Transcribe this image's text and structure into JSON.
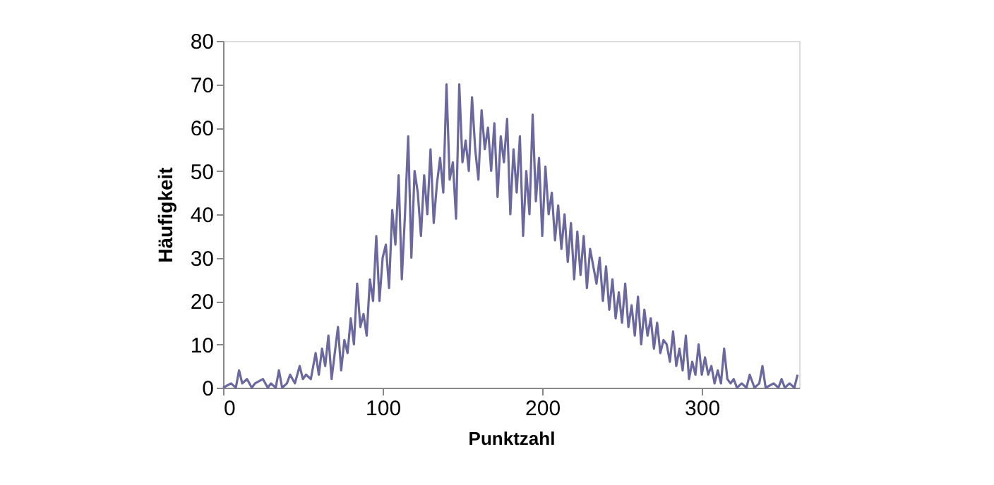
{
  "chart_data": {
    "type": "line",
    "xlabel": "Punktzahl",
    "ylabel": "Häufigkeit",
    "xlim": [
      0,
      361
    ],
    "xticks": [
      0,
      100,
      200,
      300
    ],
    "ylim": [
      0,
      80
    ],
    "yticks": [
      0,
      10,
      20,
      30,
      40,
      50,
      60,
      70,
      80
    ],
    "grid": false,
    "legend": false,
    "marker": "none",
    "line_style": "solid",
    "x": [
      0,
      5,
      8,
      10,
      12,
      15,
      18,
      20,
      25,
      28,
      30,
      33,
      35,
      37,
      40,
      42,
      45,
      48,
      50,
      52,
      55,
      58,
      60,
      62,
      64,
      66,
      68,
      70,
      72,
      74,
      76,
      78,
      80,
      82,
      84,
      86,
      88,
      90,
      92,
      94,
      96,
      98,
      100,
      102,
      104,
      106,
      108,
      110,
      112,
      114,
      116,
      118,
      120,
      122,
      124,
      126,
      128,
      130,
      132,
      134,
      136,
      138,
      140,
      142,
      144,
      146,
      148,
      150,
      152,
      154,
      156,
      158,
      160,
      162,
      164,
      166,
      168,
      170,
      172,
      174,
      176,
      178,
      180,
      182,
      184,
      186,
      188,
      190,
      192,
      194,
      196,
      198,
      200,
      202,
      204,
      206,
      208,
      210,
      212,
      214,
      216,
      218,
      220,
      222,
      224,
      226,
      228,
      230,
      232,
      234,
      236,
      238,
      240,
      242,
      244,
      246,
      248,
      250,
      252,
      254,
      256,
      258,
      260,
      262,
      264,
      266,
      268,
      270,
      272,
      274,
      276,
      278,
      280,
      282,
      284,
      286,
      288,
      290,
      292,
      294,
      296,
      298,
      300,
      302,
      304,
      306,
      308,
      310,
      312,
      314,
      316,
      318,
      320,
      322,
      325,
      328,
      330,
      333,
      336,
      338,
      340,
      345,
      348,
      350,
      352,
      355,
      358,
      360
    ],
    "series": [
      {
        "color": "#6b68a0",
        "values": [
          0,
          1,
          0,
          4,
          1,
          2,
          0,
          1,
          2,
          0,
          1,
          0,
          4,
          0,
          1,
          3,
          1,
          5,
          2,
          3,
          2,
          8,
          3,
          9,
          5,
          12,
          2,
          8,
          14,
          4,
          11,
          8,
          16,
          10,
          24,
          14,
          17,
          12,
          25,
          20,
          35,
          20,
          30,
          33,
          23,
          41,
          33,
          49,
          25,
          40,
          58,
          30,
          50,
          45,
          35,
          49,
          40,
          55,
          38,
          47,
          53,
          45,
          70,
          48,
          52,
          39,
          70,
          52,
          57,
          50,
          67,
          55,
          48,
          64,
          55,
          60,
          50,
          61,
          44,
          58,
          52,
          62,
          40,
          55,
          45,
          58,
          35,
          50,
          40,
          63,
          43,
          53,
          35,
          51,
          40,
          45,
          34,
          42,
          32,
          40,
          29,
          38,
          25,
          36,
          26,
          35,
          23,
          32,
          28,
          24,
          30,
          20,
          28,
          18,
          25,
          16,
          22,
          15,
          24,
          14,
          19,
          12,
          21,
          10,
          18,
          12,
          16,
          9,
          15,
          8,
          11,
          10,
          6,
          13,
          5,
          9,
          4,
          12,
          2,
          6,
          3,
          10,
          3,
          7,
          3,
          5,
          1,
          4,
          1,
          9,
          2,
          1,
          2,
          0,
          1,
          0,
          3,
          0,
          1,
          5,
          0,
          1,
          0,
          2,
          0,
          1,
          0,
          3
        ]
      }
    ]
  }
}
